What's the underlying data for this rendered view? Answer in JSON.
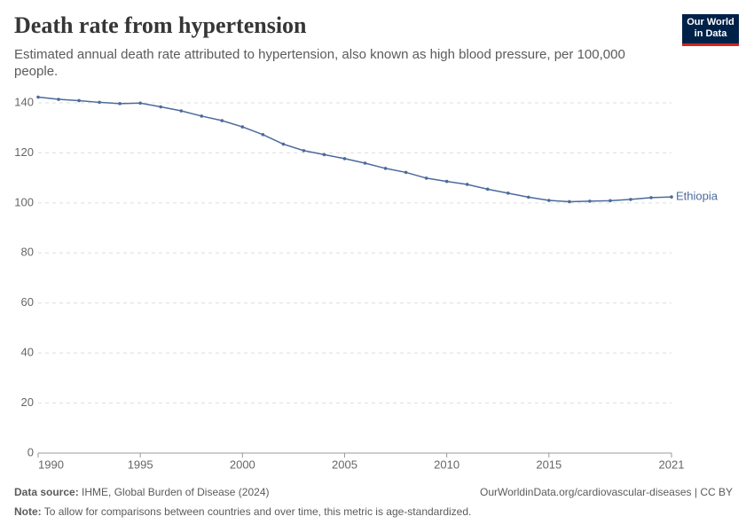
{
  "logo": {
    "line1": "Our World",
    "line2": "in Data"
  },
  "chart_data": {
    "type": "line",
    "title": "Death rate from hypertension",
    "subtitle": "Estimated annual death rate attributed to hypertension, also known as high blood pressure, per 100,000 people.",
    "x": [
      1990,
      1991,
      1992,
      1993,
      1994,
      1995,
      1996,
      1997,
      1998,
      1999,
      2000,
      2001,
      2002,
      2003,
      2004,
      2005,
      2006,
      2007,
      2008,
      2009,
      2010,
      2011,
      2012,
      2013,
      2014,
      2015,
      2016,
      2017,
      2018,
      2019,
      2020,
      2021
    ],
    "series": [
      {
        "name": "Ethiopia",
        "color": "#4c6a9c",
        "values": [
          142.3,
          141.4,
          140.9,
          140.2,
          139.7,
          139.9,
          138.4,
          136.8,
          134.7,
          132.9,
          130.4,
          127.3,
          123.5,
          120.9,
          119.3,
          117.7,
          115.9,
          113.8,
          112.2,
          109.9,
          108.6,
          107.4,
          105.5,
          103.9,
          102.3,
          101.0,
          100.5,
          100.7,
          100.9,
          101.4,
          102.1,
          102.4
        ]
      }
    ],
    "xlim": [
      1990,
      2021
    ],
    "xticks": [
      1990,
      1995,
      2000,
      2005,
      2010,
      2015,
      2021
    ],
    "ylim": [
      0,
      140
    ],
    "yticks": [
      0,
      20,
      40,
      60,
      80,
      100,
      120,
      140
    ],
    "grid": true,
    "source_label": "Data source:",
    "source": "IHME, Global Burden of Disease (2024)",
    "url": "OurWorldinData.org/cardiovascular-diseases | CC BY",
    "note_label": "Note:",
    "note": "To allow for comparisons between countries and over time, this metric is age-standardized."
  }
}
